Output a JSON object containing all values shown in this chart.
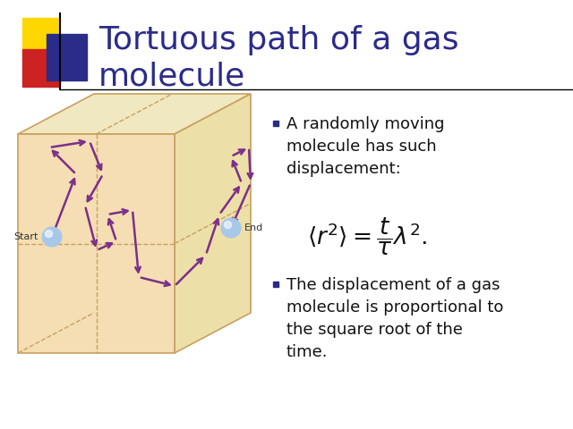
{
  "title_line1": "Tortuous path of a gas",
  "title_line2": "molecule",
  "title_color": "#2B2B8A",
  "title_fontsize": 26,
  "bg_color": "#FFFFFF",
  "bullet1": "A randomly moving\nmolecule has such\ndisplacement:",
  "bullet2": "The displacement of a gas\nmolecule is proportional to\nthe square root of the\ntime.",
  "bullet_fontsize": 13,
  "bullet_color": "#111111",
  "box_face_color": "#F5DEB3",
  "box_edge_color": "#C8A060",
  "path_color": "#7B2F8A",
  "start_label": "Start",
  "end_label": "End",
  "sphere_color": "#A8C8E8",
  "sphere_edge": "#7AAABB",
  "deco_yellow": "#FFD700",
  "deco_red": "#CC2222",
  "deco_blue": "#2B2B8A",
  "separator_color": "#999999",
  "bullet_marker_color": "#2B2B8A",
  "dashed_color": "#C8A060",
  "right_face_color": "#EDDFA8",
  "top_face_color": "#F0E8C0",
  "bottom_face_color": "#E8C888"
}
